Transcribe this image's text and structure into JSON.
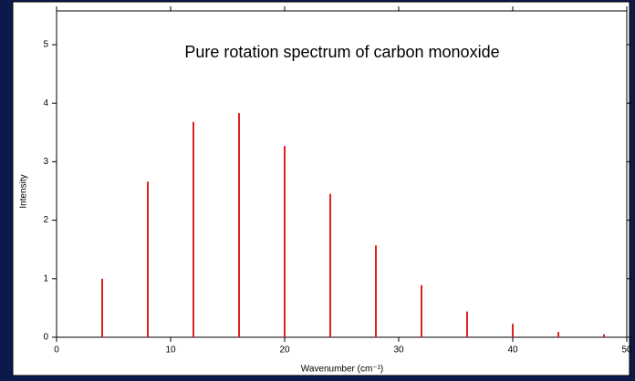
{
  "chart_data": {
    "type": "bar",
    "title": "Pure rotation spectrum of carbon monoxide",
    "x_label": "Wavenumber (cm⁻¹)",
    "y_label": "Intensity",
    "x": [
      4,
      8,
      12,
      16,
      20,
      24,
      28,
      32,
      36,
      40,
      44,
      48
    ],
    "values": [
      1.0,
      2.66,
      3.68,
      3.83,
      3.27,
      2.45,
      1.57,
      0.89,
      0.44,
      0.23,
      0.09,
      0.05
    ],
    "color": "#e02020",
    "xlim": [
      0,
      50
    ],
    "xticks": [
      0,
      10,
      20,
      30,
      40,
      50
    ],
    "ylim": [
      0,
      5
    ],
    "yticks": [
      0,
      1,
      2,
      3,
      4,
      5
    ]
  }
}
